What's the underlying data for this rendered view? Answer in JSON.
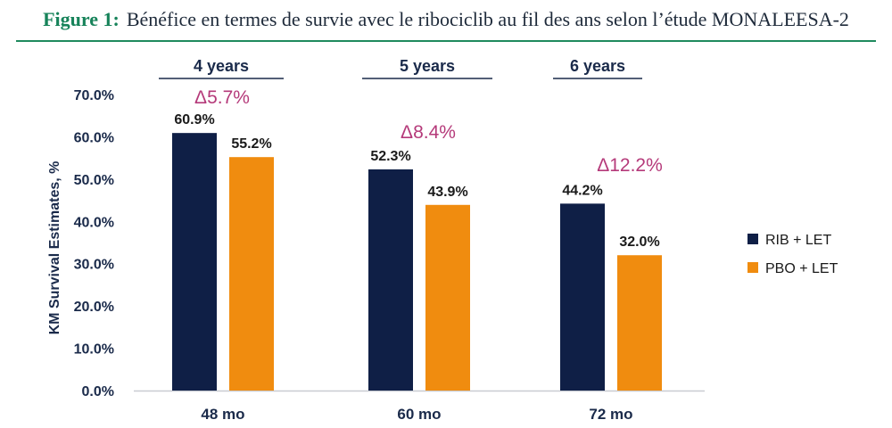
{
  "header": {
    "figure_label": "Figure 1:",
    "caption": "Bénéfice en termes de survie avec le ribociclib au fil des ans selon l’étude MONALEESA-2"
  },
  "colors": {
    "rib": "#0f1f46",
    "pbo": "#f08c0f",
    "delta": "#b53a7a",
    "axis": "#1a2a4a",
    "header_rule": "#1f8a5e"
  },
  "chart_data": {
    "type": "bar",
    "categories": [
      "48 mo",
      "60 mo",
      "72 mo"
    ],
    "group_titles": [
      "4 years",
      "5 years",
      "6 years"
    ],
    "series": [
      {
        "name": "RIB + LET",
        "values": [
          60.9,
          52.3,
          44.2
        ],
        "labels": [
          "60.9%",
          "52.3%",
          "44.2%"
        ]
      },
      {
        "name": "PBO + LET",
        "values": [
          55.2,
          43.9,
          32.0
        ],
        "labels": [
          "55.2%",
          "43.9%",
          "32.0%"
        ]
      }
    ],
    "deltas": [
      "Δ5.7%",
      "Δ8.4%",
      "Δ12.2%"
    ],
    "ylabel": "KM Survival Estimates, %",
    "ylim": [
      0,
      70
    ],
    "yticks": [
      0,
      10,
      20,
      30,
      40,
      50,
      60,
      70
    ],
    "ytick_labels": [
      "0.0%",
      "10.0%",
      "20.0%",
      "30.0%",
      "40.0%",
      "50.0%",
      "60.0%",
      "70.0%"
    ],
    "grid": false,
    "legend_position": "right"
  }
}
